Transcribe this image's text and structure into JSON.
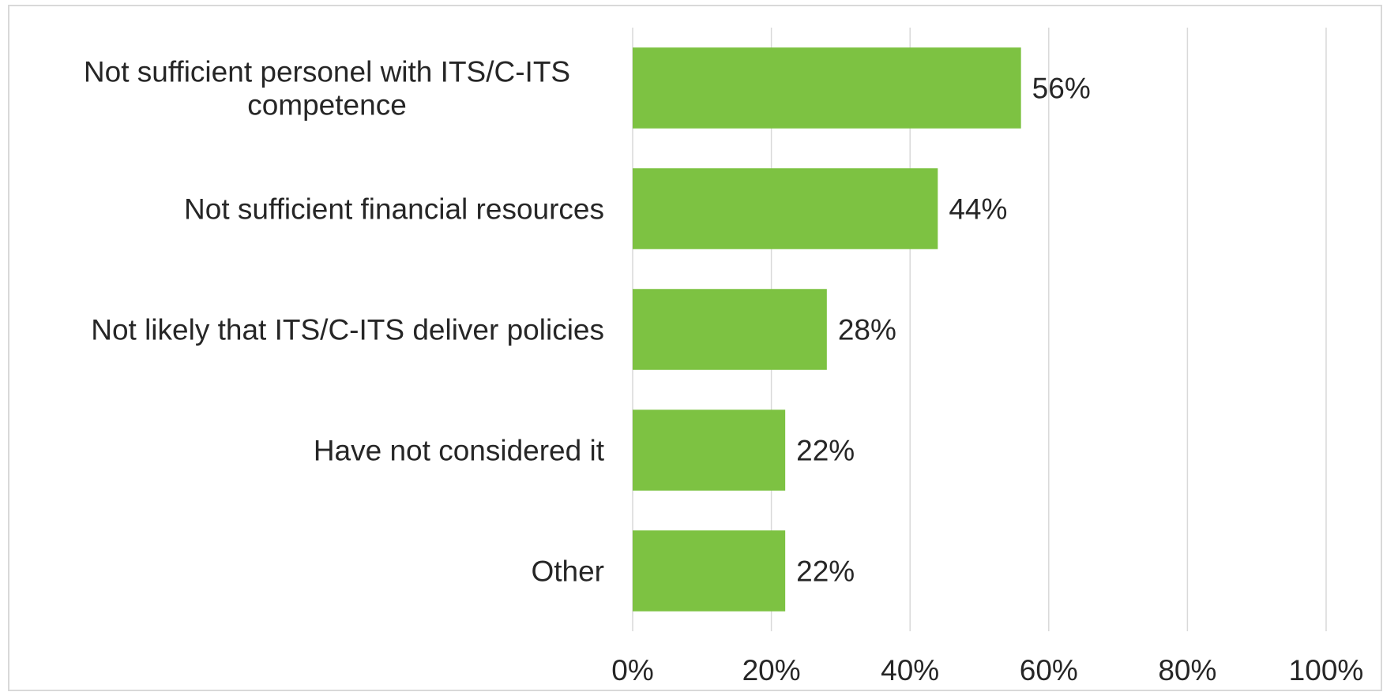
{
  "chart_data": {
    "type": "bar",
    "orientation": "horizontal",
    "title": "",
    "xlabel": "",
    "ylabel": "",
    "categories": [
      [
        "Not sufficient personel with ITS/C-ITS",
        "competence"
      ],
      [
        "Not sufficient financial resources"
      ],
      [
        "Not likely that ITS/C-ITS deliver policies"
      ],
      [
        "Have not considered it"
      ],
      [
        "Other"
      ]
    ],
    "values": [
      56,
      44,
      28,
      22,
      22
    ],
    "value_labels": [
      "56%",
      "44%",
      "28%",
      "22%",
      "22%"
    ],
    "xlim": [
      0,
      100
    ],
    "xticks": [
      0,
      20,
      40,
      60,
      80,
      100
    ],
    "xtick_labels": [
      "0%",
      "20%",
      "40%",
      "60%",
      "80%",
      "100%"
    ],
    "grid": "vertical",
    "legend": "none",
    "colors": {
      "bar": "#7DC242",
      "grid": "#D9D9D9",
      "border": "#D9D9D9",
      "text": "#262626"
    }
  }
}
